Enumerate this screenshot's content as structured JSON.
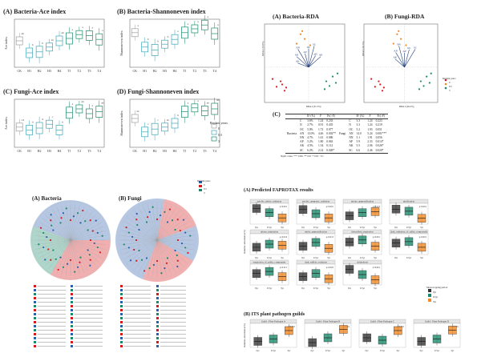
{
  "colors": {
    "g0": "#9e9e9e",
    "g05": "#3aa6b8",
    "g3": "#1a8a6a",
    "red": "#d7191c",
    "orange": "#f08a24",
    "blue": "#2b5fad",
    "navy": "#1f3b7a"
  },
  "panels": {
    "bact_ace": {
      "title": "(A) Bacteria-Ace index",
      "ylabel": "Ace index",
      "letters": [
        "ab",
        "b",
        "b",
        "bc",
        "ab",
        "a",
        "a",
        "a",
        "a"
      ]
    },
    "bact_shan": {
      "title": "(B) Bacteria-Shannoneven index",
      "ylabel": "Shannoneven index",
      "letters": [
        "a",
        "b",
        "b",
        "b",
        "a",
        "a",
        "a",
        "a",
        "a"
      ]
    },
    "fungi_ace": {
      "title": "(C) Fungi-Ace index",
      "ylabel": "Ace index",
      "letters": [
        "cd",
        "d",
        "d",
        "c",
        "b",
        "a",
        "ab",
        "a",
        "ab"
      ]
    },
    "fungi_shan": {
      "title": "(D) Fungi-Shannoneven index",
      "ylabel": "Shannoneven index",
      "letters": [
        "bc",
        "c",
        "c",
        "bc",
        "b",
        "a",
        "a",
        "ab",
        "ab"
      ]
    },
    "x_categories": [
      "CK",
      "H1",
      "H2",
      "H3",
      "H4",
      "T1",
      "T2",
      "T3",
      "T4"
    ],
    "legend_title": "Replant years",
    "legend_items": [
      "0",
      "0.5",
      "3"
    ]
  },
  "rda": {
    "bact_title": "(A) Bacteria-RDA",
    "fungi_title": "(B) Fungi-RDA",
    "bact_x": "RDA1 (31.5%)",
    "bact_y": "RDA2 (15.9%)",
    "fungi_x": "RDA1 (26.2%)",
    "fungi_y": "RDA2 (10.1%)",
    "arrows_bact": [
      "AK",
      "AN",
      "NN",
      "AP",
      "OC",
      "SC",
      "pH",
      "AK"
    ],
    "arrows_fungi": [
      "AK",
      "AN",
      "NN",
      "AP",
      "OC",
      "SC"
    ],
    "legend_title": "Replant years",
    "legend_items": [
      "0",
      "0.5",
      "3"
    ]
  },
  "table": {
    "label": "(C)",
    "headers": [
      "",
      "",
      "R² (%)",
      "F",
      "Pr(>F)",
      "",
      "",
      "R² (%)",
      "F",
      "Pr(>F)"
    ],
    "rows": [
      [
        "",
        "C",
        "3.6%",
        "1.24",
        "0.233",
        "",
        "C",
        "3.3",
        "1.24",
        "0.223"
      ],
      [
        "",
        "N",
        "2.7%",
        "0.91",
        "0.435",
        "",
        "N",
        "3.3",
        "1.24",
        "0.219"
      ],
      [
        "",
        "OC",
        "5.0%",
        "1.72",
        "0.077",
        "",
        "OC",
        "5.2",
        "1.93",
        "0.051"
      ],
      [
        "Bacteria",
        "AN",
        "13.0%",
        "4.46",
        "0.002**",
        "Fungi",
        "AN",
        "14.0",
        "5.24",
        "0.001***"
      ],
      [
        "",
        "NN",
        "4.7%",
        "1.61",
        "0.086",
        "",
        "NN",
        "5.1",
        "1.91",
        "0.056"
      ],
      [
        "",
        "AP",
        "5.2%",
        "1.80",
        "0.063",
        "",
        "AP",
        "5.9",
        "2.33",
        "0.014*"
      ],
      [
        "",
        "AK",
        "4.5%",
        "1.54",
        "0.112",
        "",
        "AK",
        "5.5",
        "2.06",
        "0.026*"
      ],
      [
        "",
        "SC",
        "6.2%",
        "2.14",
        "0.028*",
        "",
        "SC",
        "6.6",
        "2.46",
        "0.020*"
      ]
    ],
    "footnote": "Signif. codes: '***' 0.001 '**' 0.01 '*' 0.05 '.' 0.1"
  },
  "lefse": {
    "bact_title": "(A) Bacteria",
    "fungi_title": "(B) Fungi",
    "legend_title": "Replant years",
    "legend_items": [
      "0",
      "0.5",
      "3"
    ]
  },
  "faprotax": {
    "title": "(A) Predicted FAPROTAX results",
    "ylabel": "Relative abundance(%)",
    "facets": [
      "aerobic_nitrite_oxidation",
      "aerobic_ammonia_oxidation",
      "nitrate_ammonification",
      "nitrification",
      "nitrate_respiration",
      "nitrite_ammonification",
      "thiosulfate_respiration",
      "dark_oxidation_of_sulfur_compounds",
      "respiration_of_sulfur_compounds",
      "dark_sulfide_oxidation",
      "chitinolysis"
    ],
    "pvals": [
      "p<0.001",
      "p<0.001",
      "p=0.023",
      "p<0.001",
      "p=0.016",
      "p=0.013",
      "p=0.001",
      "p=0.001",
      "p=0.011",
      "p=0.003",
      "p<0.001"
    ],
    "x": [
      "0yr",
      "0.5yr",
      "3yr"
    ],
    "legend_title": "Monocropping period",
    "legend_items": [
      "0yr",
      "0.5yr",
      "3yr"
    ]
  },
  "its": {
    "title": "(B) ITS plant pathogen guilds",
    "ylabel": "Relative abundance(%)",
    "facets": [
      "Guild : Plant Pathogen A",
      "Guild : Plant Pathogen B",
      "Guild : Plant Pathogen C",
      "Guild : Plant Pathogen D"
    ],
    "pvals": [
      "p<0.001",
      "p<0.001",
      "p<0.001",
      "p<0.001"
    ],
    "x": [
      "0yr",
      "0.5yr",
      "3yr"
    ]
  }
}
